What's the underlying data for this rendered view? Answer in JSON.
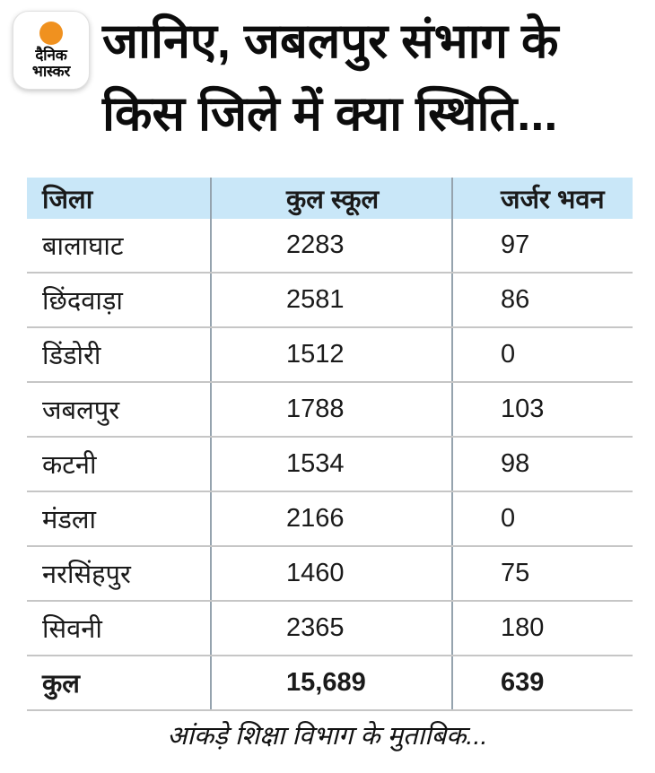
{
  "logo": {
    "line1": "दैनिक",
    "line2": "भास्कर"
  },
  "title": {
    "line1": "जानिए, जबलपुर संभाग के",
    "line2": "किस जिले में क्या स्थिति..."
  },
  "table": {
    "columns": [
      "जिला",
      "कुल स्कूल",
      "जर्जर भवन"
    ],
    "rows": [
      {
        "district": "बालाघाट",
        "total_schools": "2283",
        "dilapidated": "97"
      },
      {
        "district": "छिंदवाड़ा",
        "total_schools": "2581",
        "dilapidated": "86"
      },
      {
        "district": "डिंडोरी",
        "total_schools": "1512",
        "dilapidated": "0"
      },
      {
        "district": "जबलपुर",
        "total_schools": "1788",
        "dilapidated": "103"
      },
      {
        "district": "कटनी",
        "total_schools": "1534",
        "dilapidated": "98"
      },
      {
        "district": "मंडला",
        "total_schools": "2166",
        "dilapidated": "0"
      },
      {
        "district": "नरसिंहपुर",
        "total_schools": "1460",
        "dilapidated": "75"
      },
      {
        "district": "सिवनी",
        "total_schools": "2365",
        "dilapidated": "180"
      }
    ],
    "total": {
      "district": "कुल",
      "total_schools": "15,689",
      "dilapidated": "639"
    }
  },
  "footer": {
    "note": "आंकड़े शिक्षा विभाग के मुताबिक..."
  },
  "colors": {
    "header_bg": "#c9e7f8",
    "column_divider": "#95a3ae",
    "row_line": "#c6c6c6",
    "accent_orange": "#f0911f",
    "text": "#1a1a1a"
  },
  "chart_data": {
    "type": "table",
    "title": "जानिए, जबलपुर संभाग के किस जिले में क्या स्थिति...",
    "columns": [
      "जिला",
      "कुल स्कूल",
      "जर्जर भवन"
    ],
    "rows": [
      [
        "बालाघाट",
        2283,
        97
      ],
      [
        "छिंदवाड़ा",
        2581,
        86
      ],
      [
        "डिंडोरी",
        1512,
        0
      ],
      [
        "जबलपुर",
        1788,
        103
      ],
      [
        "कटनी",
        1534,
        98
      ],
      [
        "मंडला",
        2166,
        0
      ],
      [
        "नरसिंहपुर",
        1460,
        75
      ],
      [
        "सिवनी",
        2365,
        180
      ]
    ],
    "total_row": [
      "कुल",
      15689,
      639
    ],
    "note": "आंकड़े शिक्षा विभाग के मुताबिक..."
  }
}
